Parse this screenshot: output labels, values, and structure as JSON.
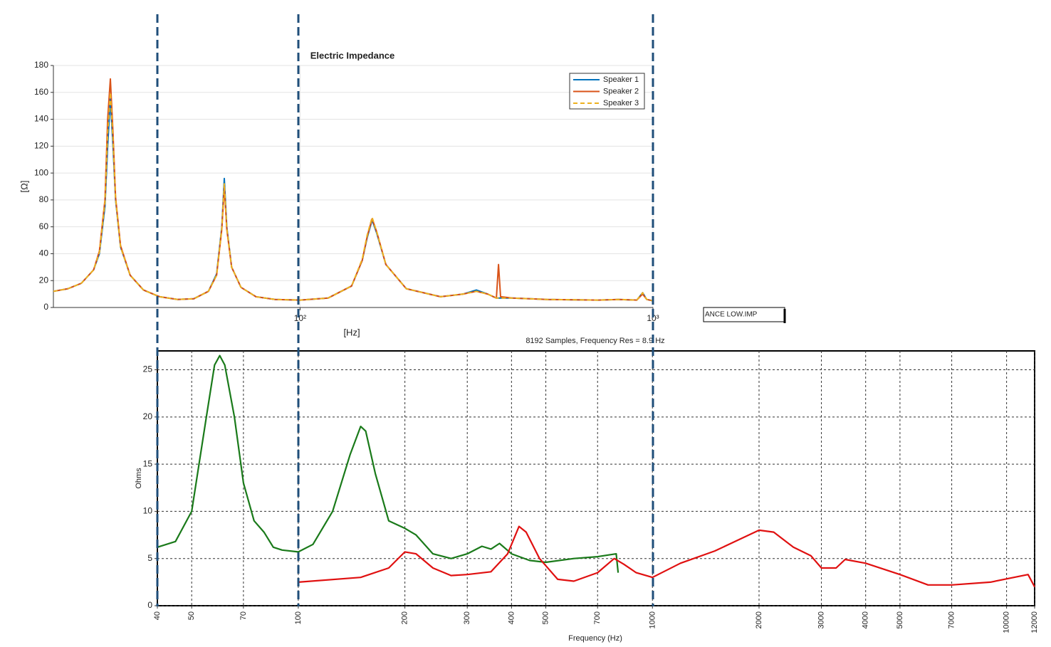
{
  "chart_data": [
    {
      "type": "line",
      "title": "Electric Impedance",
      "xlabel": "[Hz]",
      "ylabel": "[Ω]",
      "xscale": "log",
      "xlim": [
        20,
        1000
      ],
      "xticks": [
        {
          "value": 100,
          "label": "10²"
        },
        {
          "value": 1000,
          "label": "10³"
        }
      ],
      "ylim": [
        0,
        180
      ],
      "yticks": [
        0,
        20,
        40,
        60,
        80,
        100,
        120,
        140,
        160,
        180
      ],
      "grid": true,
      "legend": "upper right",
      "x": [
        20,
        22,
        24,
        26,
        27,
        28,
        28.5,
        29,
        29.5,
        30,
        31,
        33,
        36,
        40,
        45,
        50,
        55,
        58,
        60,
        61,
        62,
        64,
        68,
        75,
        85,
        100,
        120,
        140,
        150,
        155,
        160,
        165,
        175,
        200,
        250,
        290,
        316,
        340,
        360,
        365,
        370,
        400,
        500,
        700,
        800,
        900,
        935,
        960,
        1000
      ],
      "series": [
        {
          "name": "Speaker 1",
          "color": "#0072bd",
          "linestyle": "solid",
          "values": [
            12,
            14,
            18,
            28,
            40,
            75,
            120,
            155,
            120,
            80,
            45,
            24,
            13,
            8,
            6,
            6.5,
            12,
            25,
            60,
            96,
            60,
            30,
            15,
            8,
            6,
            5.5,
            7,
            16,
            35,
            52,
            65,
            55,
            32,
            14,
            8,
            10,
            13,
            10,
            7,
            7,
            7,
            7,
            6,
            5.5,
            6,
            5.5,
            11,
            6,
            5
          ]
        },
        {
          "name": "Speaker 2",
          "color": "#d95319",
          "linestyle": "solid",
          "values": [
            12,
            14,
            18,
            28,
            42,
            80,
            140,
            170,
            130,
            82,
            46,
            24,
            13,
            8,
            6,
            6.5,
            12,
            24,
            58,
            90,
            58,
            30,
            15,
            8,
            6,
            5.5,
            7,
            16,
            35,
            53,
            66,
            56,
            32,
            14,
            8,
            10,
            12,
            10,
            7,
            32,
            8,
            7,
            6,
            5.5,
            6,
            5.5,
            10,
            6,
            5
          ]
        },
        {
          "name": "Speaker 3",
          "color": "#edb120",
          "linestyle": "dashed",
          "values": [
            12,
            14,
            18,
            28,
            41,
            78,
            130,
            160,
            125,
            81,
            45,
            24,
            13,
            8,
            6,
            6.5,
            12,
            24,
            59,
            92,
            59,
            30,
            15,
            8,
            6,
            5.5,
            7,
            16,
            36,
            54,
            67,
            56,
            32,
            14,
            8,
            10,
            12,
            10,
            7,
            7,
            7,
            7,
            6,
            5.5,
            6,
            5.5,
            11,
            6,
            5
          ]
        }
      ]
    },
    {
      "type": "line",
      "title": "8192 Samples, Frequency Res = 8.9 Hz",
      "file_label": "ANCE LOW.IMP",
      "xlabel": "Frequency (Hz)",
      "ylabel": "Ohms",
      "xscale": "log",
      "xlim": [
        40,
        12000
      ],
      "xticks": [
        40,
        50,
        70,
        100,
        200,
        300,
        400,
        500,
        700,
        1000,
        2000,
        3000,
        4000,
        5000,
        7000,
        10000,
        12000
      ],
      "ylim": [
        0,
        27
      ],
      "yticks": [
        0,
        5,
        10,
        15,
        20,
        25
      ],
      "grid": true,
      "series": [
        {
          "color": "#1a7a1a",
          "x": [
            40,
            45,
            50,
            55,
            58,
            60,
            62,
            66,
            70,
            75,
            80,
            85,
            90,
            100,
            110,
            125,
            140,
            150,
            155,
            165,
            180,
            200,
            215,
            240,
            270,
            300,
            330,
            350,
            370,
            400,
            450,
            500,
            600,
            700,
            790,
            800
          ],
          "values": [
            6.2,
            6.8,
            10,
            20,
            25.5,
            26.5,
            25.5,
            20,
            13,
            9,
            7.8,
            6.2,
            5.9,
            5.7,
            6.5,
            10,
            16,
            19,
            18.5,
            14,
            9,
            8.2,
            7.5,
            5.5,
            5,
            5.5,
            6.3,
            6,
            6.6,
            5.5,
            4.8,
            4.6,
            5,
            5.2,
            5.5,
            3.5
          ]
        },
        {
          "color": "#e01010",
          "x": [
            100,
            150,
            180,
            200,
            215,
            240,
            270,
            300,
            350,
            390,
            420,
            440,
            480,
            540,
            600,
            700,
            780,
            830,
            900,
            1000,
            1200,
            1500,
            2000,
            2200,
            2500,
            2800,
            3000,
            3300,
            3500,
            4000,
            5000,
            6000,
            7000,
            9000,
            11500,
            12000
          ],
          "values": [
            2.5,
            3,
            4,
            5.7,
            5.5,
            4,
            3.2,
            3.3,
            3.6,
            5.5,
            8.4,
            7.8,
            5,
            2.8,
            2.6,
            3.5,
            5,
            4.4,
            3.5,
            3,
            4.5,
            5.8,
            8,
            7.8,
            6.2,
            5.3,
            4,
            4,
            4.9,
            4.5,
            3.3,
            2.2,
            2.2,
            2.5,
            3.3,
            2
          ]
        }
      ]
    }
  ]
}
